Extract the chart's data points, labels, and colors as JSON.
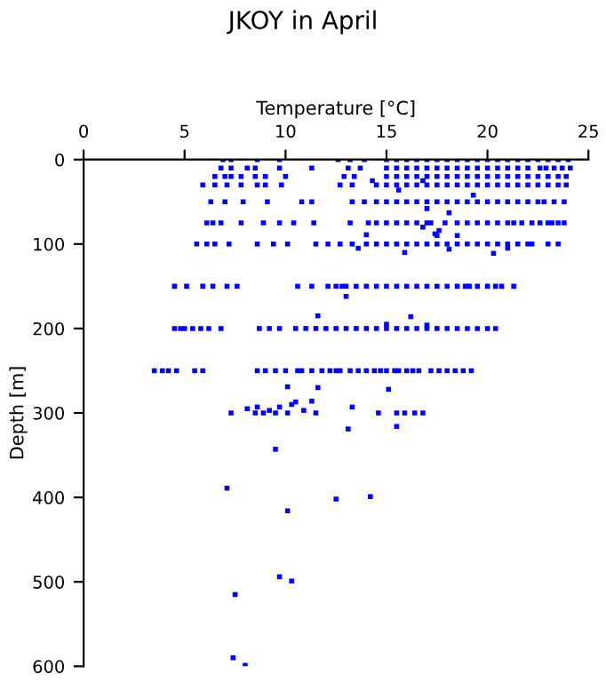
{
  "chart_data": {
    "type": "scatter",
    "title": "JKOY in April",
    "xlabel": "Temperature [°C]",
    "ylabel": "Depth [m]",
    "xlim": [
      0,
      25
    ],
    "xticks": [
      0,
      5,
      10,
      15,
      20,
      25
    ],
    "ylim": [
      600,
      0
    ],
    "yticks": [
      0,
      100,
      200,
      300,
      400,
      500,
      600
    ],
    "grid": false,
    "legend": false,
    "marker": "square",
    "series": [
      {
        "color": "#0000ff",
        "x": [
          6.9,
          7.3,
          8.6,
          9.7,
          12.6,
          13.2,
          13.9,
          15,
          15.5,
          16,
          16.5,
          17,
          17.5,
          18,
          18.5,
          19,
          19.5,
          20,
          20.5,
          21,
          21.5,
          22,
          22.5,
          23,
          23.5,
          24
        ],
        "values": [
          0,
          0,
          0,
          0,
          0,
          0,
          0,
          0,
          0,
          0,
          0,
          0,
          0,
          0,
          0,
          0,
          0,
          0,
          0,
          0,
          0,
          0,
          0,
          0,
          0,
          0
        ]
      },
      {
        "color": "#0000ff",
        "x": [
          6.8,
          7.3,
          8.1,
          8.5,
          9.7,
          11.3,
          13.1,
          13.7,
          15,
          15.5,
          16,
          16.5,
          17,
          17.5,
          18,
          18.5,
          19,
          19.5,
          20,
          20.5,
          21,
          21.5,
          22,
          22.6,
          22.9,
          23.3,
          23.7,
          24.1
        ],
        "values": [
          10,
          10,
          10,
          10,
          10,
          10,
          10,
          10,
          10,
          10,
          10,
          10,
          10,
          10,
          10,
          10,
          10,
          10,
          10,
          10,
          10,
          10,
          10,
          10,
          10,
          10,
          10,
          10
        ]
      },
      {
        "color": "#0000ff",
        "x": [
          6.5,
          7.0,
          7.3,
          7.8,
          8.5,
          9.0,
          10.0,
          12.9,
          13.4,
          15,
          15.5,
          16,
          16.5,
          17,
          17.5,
          18,
          18.5,
          19,
          19.5,
          20,
          20.5,
          21,
          21.5,
          22,
          22.5,
          23,
          23.5,
          23.9
        ],
        "values": [
          20,
          20,
          20,
          20,
          20,
          20,
          20,
          20,
          20,
          20,
          20,
          20,
          20,
          20,
          20,
          20,
          20,
          20,
          20,
          20,
          20,
          20,
          20,
          20,
          20,
          20,
          20,
          20
        ]
      },
      {
        "color": "#0000ff",
        "x": [
          5.9,
          6.5,
          7.1,
          7.8,
          8.6,
          9.0,
          9.8,
          12.7,
          13.3,
          14.5,
          15,
          15.5,
          16,
          16.5,
          17,
          17.5,
          18,
          18.5,
          19,
          19.5,
          20,
          20.5,
          21,
          21.5,
          22,
          22.5,
          23,
          23.5,
          23.9
        ],
        "values": [
          30,
          30,
          30,
          30,
          30,
          30,
          30,
          30,
          30,
          30,
          30,
          30,
          30,
          30,
          30,
          30,
          30,
          30,
          30,
          30,
          30,
          30,
          30,
          30,
          30,
          30,
          30,
          30,
          30
        ]
      },
      {
        "color": "#0000ff",
        "x": [
          6.3,
          7.0,
          7.9,
          9.1,
          10.8,
          11.3,
          13.3,
          13.9,
          14.5,
          15,
          15.5,
          16,
          16.5,
          17,
          17.5,
          18,
          18.5,
          19,
          19.5,
          20,
          20.5,
          21,
          21.5,
          22,
          22.5,
          22.8,
          23.3,
          23.8
        ],
        "values": [
          50,
          50,
          50,
          50,
          50,
          50,
          50,
          50,
          50,
          50,
          50,
          50,
          50,
          50,
          50,
          50,
          50,
          50,
          50,
          50,
          50,
          50,
          50,
          50,
          50,
          50,
          50,
          50
        ]
      },
      {
        "color": "#0000ff",
        "x": [
          6.1,
          6.4,
          6.8,
          7.8,
          8.9,
          9.7,
          10.4,
          11.4,
          13.2,
          14.1,
          14.5,
          15,
          15.5,
          16,
          16.5,
          17,
          17.2,
          17.9,
          18.5,
          19,
          19.5,
          20,
          20.5,
          21,
          21.3,
          21.7,
          22.2,
          22.6,
          23.0,
          23.2,
          23.5,
          23.8
        ],
        "values": [
          75,
          75,
          75,
          75,
          75,
          75,
          75,
          75,
          75,
          75,
          75,
          75,
          75,
          75,
          75,
          75,
          75,
          75,
          75,
          75,
          75,
          75,
          75,
          75,
          75,
          75,
          75,
          75,
          75,
          75,
          75,
          75
        ]
      },
      {
        "color": "#0000ff",
        "x": [
          5.6,
          6.1,
          6.5,
          7.2,
          8.6,
          9.4,
          10.1,
          11.5,
          12.1,
          12.7,
          13.3,
          14,
          14.5,
          15,
          15.5,
          16,
          16.5,
          17,
          17.5,
          18,
          18.5,
          19,
          19.5,
          20,
          20.5,
          21,
          21.5,
          22,
          22.2,
          23.0,
          23.5
        ],
        "values": [
          100,
          100,
          100,
          100,
          100,
          100,
          100,
          100,
          100,
          100,
          100,
          100,
          100,
          100,
          100,
          100,
          100,
          100,
          100,
          100,
          100,
          100,
          100,
          100,
          100,
          100,
          100,
          100,
          100,
          100,
          100
        ]
      },
      {
        "color": "#0000ff",
        "x": [
          4.5,
          5.1,
          5.9,
          6.4,
          7.1,
          7.6,
          10.6,
          11.3,
          12.1,
          12.5,
          12.8,
          13,
          13.5,
          14,
          14.5,
          15,
          15.5,
          16,
          16.5,
          17,
          17.5,
          18,
          18.5,
          18.9,
          19.1,
          19.5,
          20,
          20.4,
          20.7,
          21.3
        ],
        "values": [
          150,
          150,
          150,
          150,
          150,
          150,
          150,
          150,
          150,
          150,
          150,
          150,
          150,
          150,
          150,
          150,
          150,
          150,
          150,
          150,
          150,
          150,
          150,
          150,
          150,
          150,
          150,
          150,
          150,
          150
        ]
      },
      {
        "color": "#0000ff",
        "x": [
          4.5,
          4.8,
          5.0,
          5.4,
          5.8,
          6.2,
          6.8,
          8.7,
          9.2,
          9.7,
          10.5,
          11,
          11.5,
          12,
          12.5,
          13,
          13.5,
          14,
          14.5,
          15,
          15.5,
          16,
          16.5,
          17,
          17.5,
          18,
          18.5,
          19,
          19.5,
          20,
          20.4
        ],
        "values": [
          200,
          200,
          200,
          200,
          200,
          200,
          200,
          200,
          200,
          200,
          200,
          200,
          200,
          200,
          200,
          200,
          200,
          200,
          200,
          200,
          200,
          200,
          200,
          200,
          200,
          200,
          200,
          200,
          200,
          200,
          200
        ]
      },
      {
        "color": "#0000ff",
        "x": [
          3.5,
          3.9,
          4.2,
          4.6,
          5.5,
          5.9,
          8.6,
          9,
          9.5,
          10,
          10.6,
          10.8,
          11.3,
          11.8,
          12.2,
          12.5,
          12.7,
          13.2,
          13.6,
          14,
          14.4,
          14.7,
          15,
          15.4,
          15.6,
          16,
          16.3,
          16.6,
          17.2,
          17.6,
          18,
          18.4,
          18.8,
          19.2
        ],
        "values": [
          250,
          250,
          250,
          250,
          250,
          250,
          250,
          250,
          250,
          250,
          250,
          250,
          250,
          250,
          250,
          250,
          250,
          250,
          250,
          250,
          250,
          250,
          250,
          250,
          250,
          250,
          250,
          250,
          250,
          250,
          250,
          250,
          250,
          250
        ]
      },
      {
        "color": "#0000ff",
        "x": [
          7.3,
          8.5,
          8.9,
          9.5,
          10.1,
          11.5,
          14.6,
          15.5,
          15.9,
          16.4,
          16.8
        ],
        "values": [
          300,
          300,
          300,
          300,
          300,
          300,
          300,
          300,
          300,
          300,
          300
        ]
      },
      {
        "color": "#0000ff",
        "x": [
          15.6,
          19.3,
          14.3,
          16.8,
          17.0,
          18.1,
          16.8,
          17.6,
          17.5,
          14.0,
          13.6,
          15.9,
          17.4,
          18.5,
          18.1,
          20.3,
          21.0,
          13.0,
          11.6,
          16.2,
          15.0,
          17.0,
          10.1,
          11.6,
          15.1,
          8.1,
          8.6,
          9.2,
          9.7,
          10.3,
          10.5,
          10.9,
          11.3,
          13.3,
          13.1,
          15.5,
          9.5,
          7.1,
          12.5,
          14.2,
          10.1,
          9.7,
          10.3,
          7.5,
          7.4,
          8.0
        ],
        "values": [
          36,
          42,
          25,
          25,
          58,
          63,
          80,
          84,
          90,
          89,
          105,
          110,
          88,
          90,
          106,
          111,
          105,
          162,
          185,
          186,
          195,
          196,
          269,
          270,
          272,
          295,
          293,
          297,
          293,
          290,
          287,
          297,
          286,
          293,
          319,
          316,
          343,
          389,
          402,
          399,
          416,
          494,
          499,
          515,
          590,
          599
        ]
      }
    ]
  }
}
